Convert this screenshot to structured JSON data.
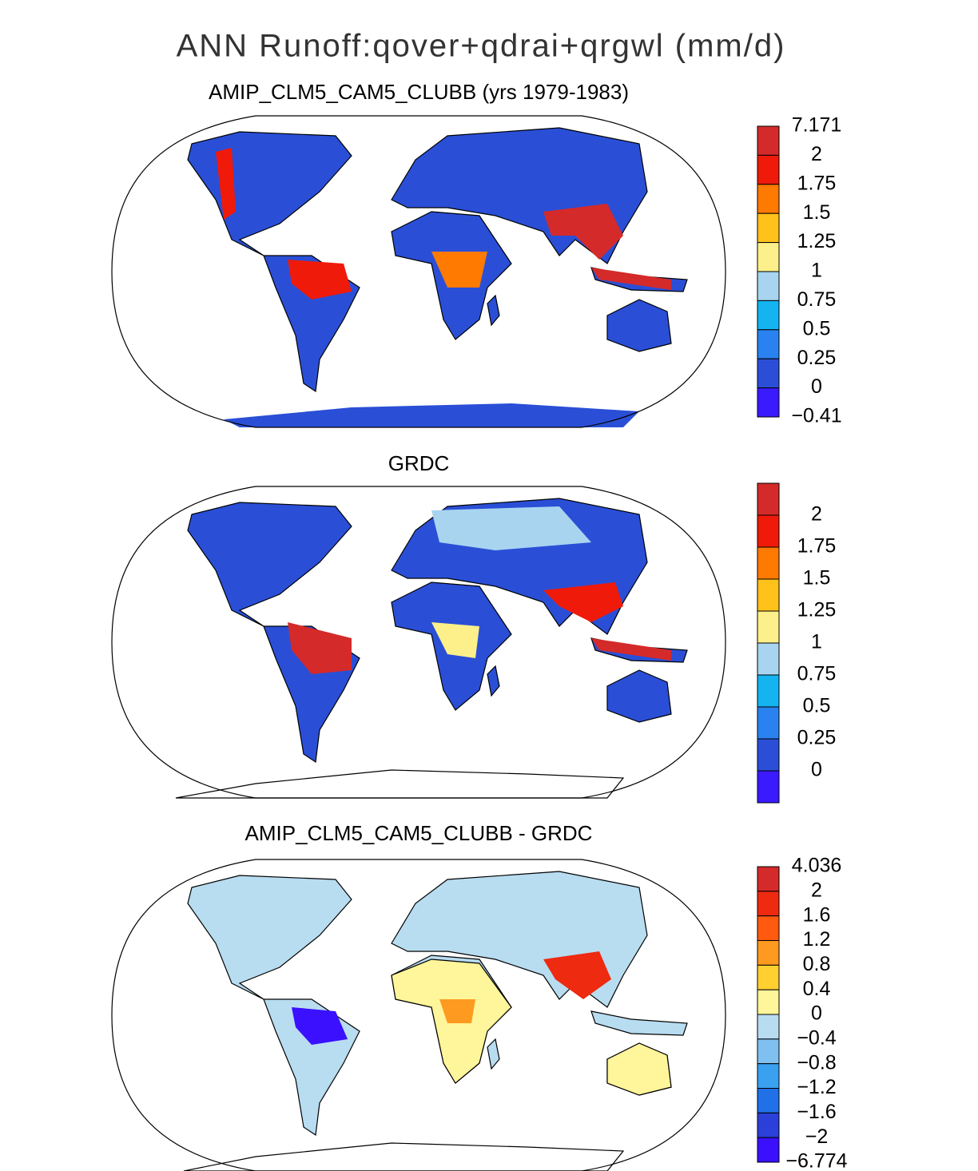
{
  "title": "ANN Runoff:qover+qdrai+qrgwl (mm/d)",
  "panels": [
    {
      "title": "AMIP_CLM5_CAM5_CLUBB (yrs 1979-1983)",
      "colorbar": {
        "labels": [
          "7.171",
          "2",
          "1.75",
          "1.5",
          "1.25",
          "1",
          "0.75",
          "0.5",
          "0.25",
          "0",
          "−0.41"
        ],
        "colors": [
          "#d42a2a",
          "#f01a0a",
          "#ff7a00",
          "#ffc21a",
          "#fdf08a",
          "#a8d4f0",
          "#14b4f0",
          "#2a82f0",
          "#2a4fd6",
          "#3a1aff"
        ]
      }
    },
    {
      "title": "GRDC",
      "colorbar": {
        "labels": [
          "2",
          "1.75",
          "1.5",
          "1.25",
          "1",
          "0.75",
          "0.5",
          "0.25",
          "0"
        ],
        "colors": [
          "#d42a2a",
          "#f01a0a",
          "#ff7a00",
          "#ffc21a",
          "#fdf08a",
          "#a8d4f0",
          "#14b4f0",
          "#2a82f0",
          "#2a4fd6",
          "#3a1aff"
        ]
      }
    },
    {
      "title": "AMIP_CLM5_CAM5_CLUBB - GRDC",
      "colorbar": {
        "labels": [
          "4.036",
          "2",
          "1.6",
          "1.2",
          "0.8",
          "0.4",
          "0",
          "−0.4",
          "−0.8",
          "−1.2",
          "−1.6",
          "−2",
          "−6.774"
        ],
        "colors": [
          "#d42a2a",
          "#ee2a10",
          "#ff5a10",
          "#ff9a20",
          "#ffd030",
          "#fff59a",
          "#b8dcf0",
          "#80c0f0",
          "#3aa0f0",
          "#2070e8",
          "#2a40d8",
          "#3a10ff"
        ]
      }
    }
  ]
}
